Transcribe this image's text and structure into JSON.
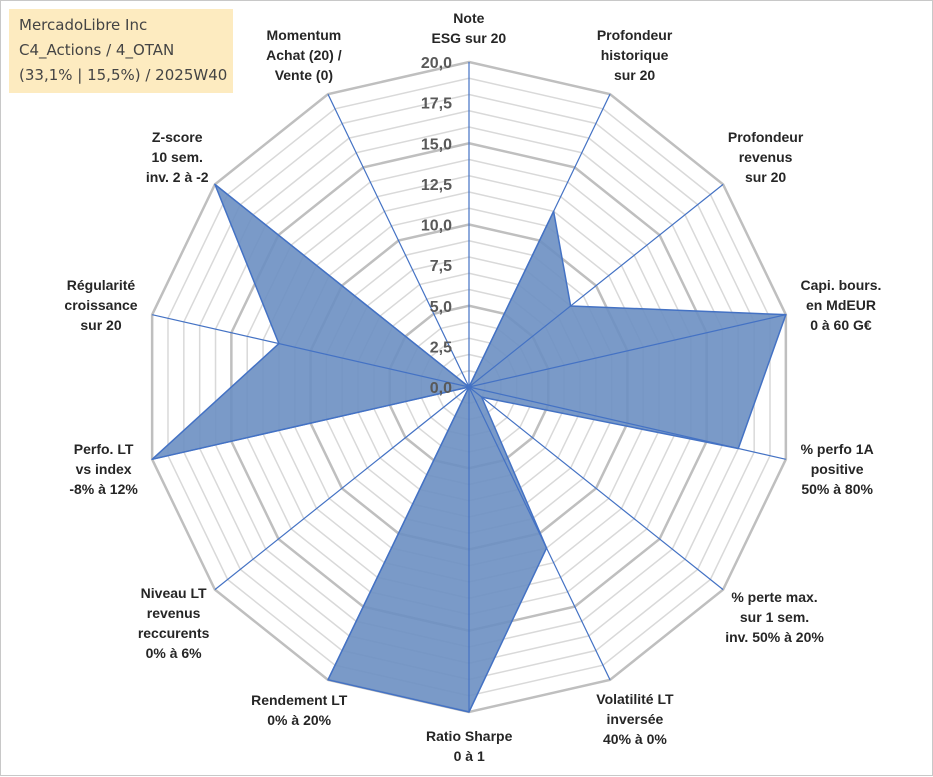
{
  "title_box": {
    "line1": "MercadoLibre Inc",
    "line2": "C4_Actions / 4_OTAN",
    "line3": "(33,1% | 15,5%) / 2025W40"
  },
  "colors": {
    "fill": "#6b8fc2",
    "outline": "#4472c4",
    "spoke": "#4472c4",
    "ring": "#bfbfbf",
    "ring_minor": "#d9d9d9",
    "title_bg": "#fdebc0"
  },
  "chart_data": {
    "type": "radar",
    "scale": {
      "min": 0,
      "max": 20,
      "step": 2.5
    },
    "tick_labels": [
      "0,0",
      "2,5",
      "5,0",
      "7,5",
      "10,0",
      "12,5",
      "15,0",
      "17,5",
      "20,0"
    ],
    "axes": [
      {
        "label": [
          "Note",
          "ESG sur 20"
        ],
        "value": 0
      },
      {
        "label": [
          "Profondeur",
          "historique",
          "sur 20"
        ],
        "value": 12
      },
      {
        "label": [
          "Profondeur",
          "revenus",
          "sur 20"
        ],
        "value": 8
      },
      {
        "label": [
          "Capi. bours.",
          "en MdEUR",
          "0 à 60 G€"
        ],
        "value": 20
      },
      {
        "label": [
          "% perfo 1A",
          "positive",
          "50% à 80%"
        ],
        "value": 17
      },
      {
        "label": [
          "% perte max.",
          "sur 1 sem.",
          "inv. 50% à 20%"
        ],
        "value": 1
      },
      {
        "label": [
          "Volatilité LT",
          "inversée",
          "40% à 0%"
        ],
        "value": 11
      },
      {
        "label": [
          "Ratio Sharpe",
          "0 à 1"
        ],
        "value": 20
      },
      {
        "label": [
          "Rendement LT",
          "0% à 20%"
        ],
        "value": 20
      },
      {
        "label": [
          "Niveau LT",
          "revenus",
          "reccurents",
          "0% à 6%"
        ],
        "value": 0
      },
      {
        "label": [
          "Perfo. LT",
          "vs index",
          "-8% à 12%"
        ],
        "value": 20
      },
      {
        "label": [
          "Régularité",
          "croissance",
          "sur 20"
        ],
        "value": 12
      },
      {
        "label": [
          "Z-score",
          "10 sem.",
          "inv. 2 à -2"
        ],
        "value": 20
      },
      {
        "label": [
          "Momentum",
          "Achat (20) /",
          "Vente (0)"
        ],
        "value": 0
      }
    ]
  }
}
